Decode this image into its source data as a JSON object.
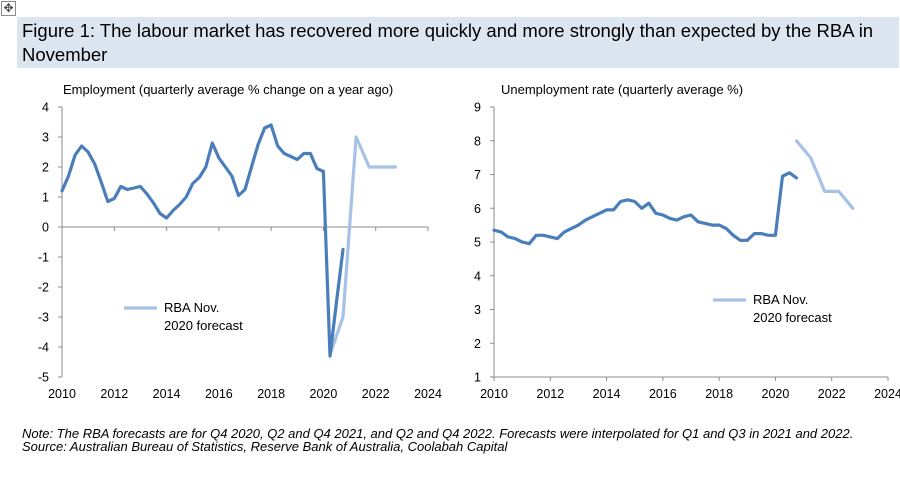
{
  "figure": {
    "handle_glyph": "✥",
    "title": "Figure 1: The labour market has recovered more quickly and more strongly than expected by the RBA in November",
    "note": "Note: The RBA forecasts are for Q4 2020, Q2 and Q4 2021, and Q2 and Q4 2022. Forecasts were interpolated for Q1 and Q3 in 2021 and 2022.",
    "source": "Source: Australian Bureau of Statistics, Reserve Bank of Australia, Coolabah Capital"
  },
  "colors": {
    "actual": "#4a7ebb",
    "forecast": "#a6c2e6",
    "axis": "#8c8c8c",
    "title_band": "#dce6f1"
  },
  "chart_data": [
    {
      "type": "line",
      "title": "Employment (quarterly average % change on a year ago)",
      "xlim": [
        2010,
        2024
      ],
      "ylim": [
        -5,
        4
      ],
      "xticks": [
        2010,
        2012,
        2014,
        2016,
        2018,
        2020,
        2022,
        2024
      ],
      "yticks": [
        -5,
        -4,
        -3,
        -2,
        -1,
        0,
        1,
        2,
        3,
        4
      ],
      "legend": {
        "label_line1": "RBA Nov.",
        "label_line2": "2020 forecast",
        "position": "lower-left"
      },
      "series": [
        {
          "name": "Employment",
          "role": "actual",
          "x": [
            2010.0,
            2010.25,
            2010.5,
            2010.75,
            2011.0,
            2011.25,
            2011.5,
            2011.75,
            2012.0,
            2012.25,
            2012.5,
            2012.75,
            2013.0,
            2013.25,
            2013.5,
            2013.75,
            2014.0,
            2014.25,
            2014.5,
            2014.75,
            2015.0,
            2015.25,
            2015.5,
            2015.75,
            2016.0,
            2016.25,
            2016.5,
            2016.75,
            2017.0,
            2017.25,
            2017.5,
            2017.75,
            2018.0,
            2018.25,
            2018.5,
            2018.75,
            2019.0,
            2019.25,
            2019.5,
            2019.75,
            2020.0,
            2020.25,
            2020.5,
            2020.75
          ],
          "values": [
            1.2,
            1.7,
            2.4,
            2.7,
            2.5,
            2.1,
            1.5,
            0.85,
            0.95,
            1.35,
            1.25,
            1.3,
            1.35,
            1.1,
            0.8,
            0.45,
            0.3,
            0.55,
            0.75,
            1.0,
            1.45,
            1.65,
            2.0,
            2.8,
            2.3,
            2.0,
            1.7,
            1.05,
            1.25,
            2.0,
            2.75,
            3.3,
            3.4,
            2.7,
            2.45,
            2.35,
            2.25,
            2.45,
            2.45,
            1.95,
            1.85,
            -4.3,
            -2.5,
            -0.75
          ]
        },
        {
          "name": "RBA Nov. 2020 forecast",
          "role": "forecast",
          "x": [
            2020.25,
            2020.75,
            2021.25,
            2021.75,
            2022.25,
            2022.75
          ],
          "values": [
            -4.25,
            -3.0,
            3.0,
            2.0,
            2.0,
            2.0
          ]
        }
      ]
    },
    {
      "type": "line",
      "title": "Unemployment rate (quarterly average %)",
      "xlim": [
        2010,
        2024
      ],
      "ylim": [
        1,
        9
      ],
      "xticks": [
        2010,
        2012,
        2014,
        2016,
        2018,
        2020,
        2022,
        2024
      ],
      "yticks": [
        1,
        2,
        3,
        4,
        5,
        6,
        7,
        8,
        9
      ],
      "legend": {
        "label_line1": "RBA Nov.",
        "label_line2": "2020 forecast",
        "position": "lower-right"
      },
      "series": [
        {
          "name": "Unemployment rate",
          "role": "actual",
          "x": [
            2010.0,
            2010.25,
            2010.5,
            2010.75,
            2011.0,
            2011.25,
            2011.5,
            2011.75,
            2012.0,
            2012.25,
            2012.5,
            2012.75,
            2013.0,
            2013.25,
            2013.5,
            2013.75,
            2014.0,
            2014.25,
            2014.5,
            2014.75,
            2015.0,
            2015.25,
            2015.5,
            2015.75,
            2016.0,
            2016.25,
            2016.5,
            2016.75,
            2017.0,
            2017.25,
            2017.5,
            2017.75,
            2018.0,
            2018.25,
            2018.5,
            2018.75,
            2019.0,
            2019.25,
            2019.5,
            2019.75,
            2020.0,
            2020.25,
            2020.5,
            2020.75
          ],
          "values": [
            5.35,
            5.3,
            5.15,
            5.1,
            5.0,
            4.95,
            5.2,
            5.2,
            5.15,
            5.1,
            5.3,
            5.4,
            5.5,
            5.65,
            5.75,
            5.85,
            5.95,
            5.95,
            6.2,
            6.25,
            6.2,
            6.0,
            6.15,
            5.85,
            5.8,
            5.7,
            5.65,
            5.75,
            5.8,
            5.6,
            5.55,
            5.5,
            5.5,
            5.4,
            5.2,
            5.05,
            5.05,
            5.25,
            5.25,
            5.2,
            5.2,
            6.95,
            7.05,
            6.9
          ]
        },
        {
          "name": "RBA Nov. 2020 forecast",
          "role": "forecast",
          "x": [
            2020.75,
            2021.25,
            2021.75,
            2022.25,
            2022.75
          ],
          "values": [
            8.0,
            7.5,
            6.5,
            6.5,
            6.0
          ]
        }
      ]
    }
  ]
}
